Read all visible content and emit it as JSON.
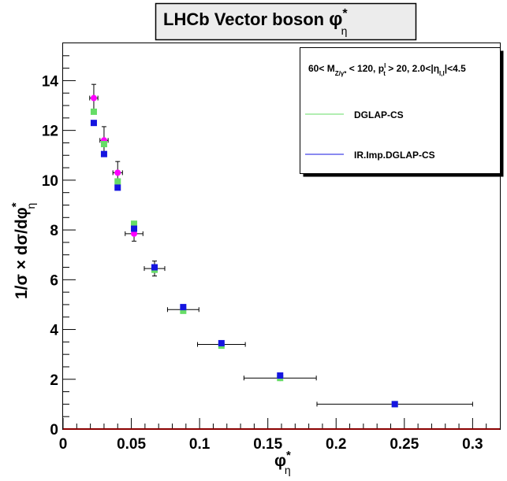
{
  "chart_data": {
    "type": "scatter",
    "title": {
      "prefix": "LHCb Vector boson ",
      "symbol": "φ",
      "sup": "*",
      "sub": "η"
    },
    "xlabel": {
      "symbol": "φ",
      "sup": "*",
      "sub": "η"
    },
    "ylabel": {
      "prefix": "1/σ × dσ/dφ",
      "sup": "*",
      "sub": "η"
    },
    "xlim": [
      0,
      0.32
    ],
    "ylim": [
      0,
      15.5
    ],
    "xticks": [
      {
        "value": 0,
        "label": "0"
      },
      {
        "value": 0.05,
        "label": "0.05"
      },
      {
        "value": 0.1,
        "label": "0.1"
      },
      {
        "value": 0.15,
        "label": "0.15"
      },
      {
        "value": 0.2,
        "label": "0.2"
      },
      {
        "value": 0.25,
        "label": "0.25"
      },
      {
        "value": 0.3,
        "label": "0.3"
      }
    ],
    "yticks": [
      {
        "value": 0,
        "label": "0"
      },
      {
        "value": 2,
        "label": "2"
      },
      {
        "value": 4,
        "label": "4"
      },
      {
        "value": 6,
        "label": "6"
      },
      {
        "value": 8,
        "label": "8"
      },
      {
        "value": 10,
        "label": "10"
      },
      {
        "value": 12,
        "label": "12"
      },
      {
        "value": 14,
        "label": "14"
      }
    ],
    "grid": false,
    "legend_placement": "top-right",
    "legend_header": {
      "a": "60< M",
      "a_sub": "Z/γ*",
      "b": " < 120, p",
      "b_sup": "l",
      "b_sub": "t",
      "c": " > 20, 2.0<|η",
      "c_sub": "l,l",
      "d": "|<4.5"
    },
    "data_series": {
      "name": "",
      "color": "#ff00ff",
      "x": [
        0.0225,
        0.03,
        0.04,
        0.052,
        0.067,
        0.088,
        0.116,
        0.159,
        0.243
      ],
      "x_err": [
        0.003,
        0.003,
        0.0035,
        0.0065,
        0.0075,
        0.0115,
        0.0175,
        0.0265,
        0.057
      ],
      "y": [
        13.3,
        11.6,
        10.3,
        7.85,
        6.45,
        4.8,
        3.4,
        2.05,
        1.0
      ],
      "y_err": [
        0.55,
        0.55,
        0.45,
        0.3,
        0.3,
        0.15,
        0.1,
        0.06,
        0.04
      ]
    },
    "series": [
      {
        "name": "DGLAP-CS",
        "color": "#66dd66",
        "x": [
          0.0225,
          0.03,
          0.04,
          0.052,
          0.067,
          0.088,
          0.116,
          0.159,
          0.243
        ],
        "values": [
          12.75,
          11.45,
          9.95,
          8.25,
          6.4,
          4.75,
          3.35,
          2.05,
          1.0
        ]
      },
      {
        "name": "IR.Imp.DGLAP-CS",
        "color": "#1515e0",
        "x": [
          0.0225,
          0.03,
          0.04,
          0.052,
          0.067,
          0.088,
          0.116,
          0.159,
          0.243
        ],
        "values": [
          12.3,
          11.05,
          9.7,
          8.05,
          6.5,
          4.9,
          3.45,
          2.15,
          1.0
        ]
      }
    ]
  }
}
